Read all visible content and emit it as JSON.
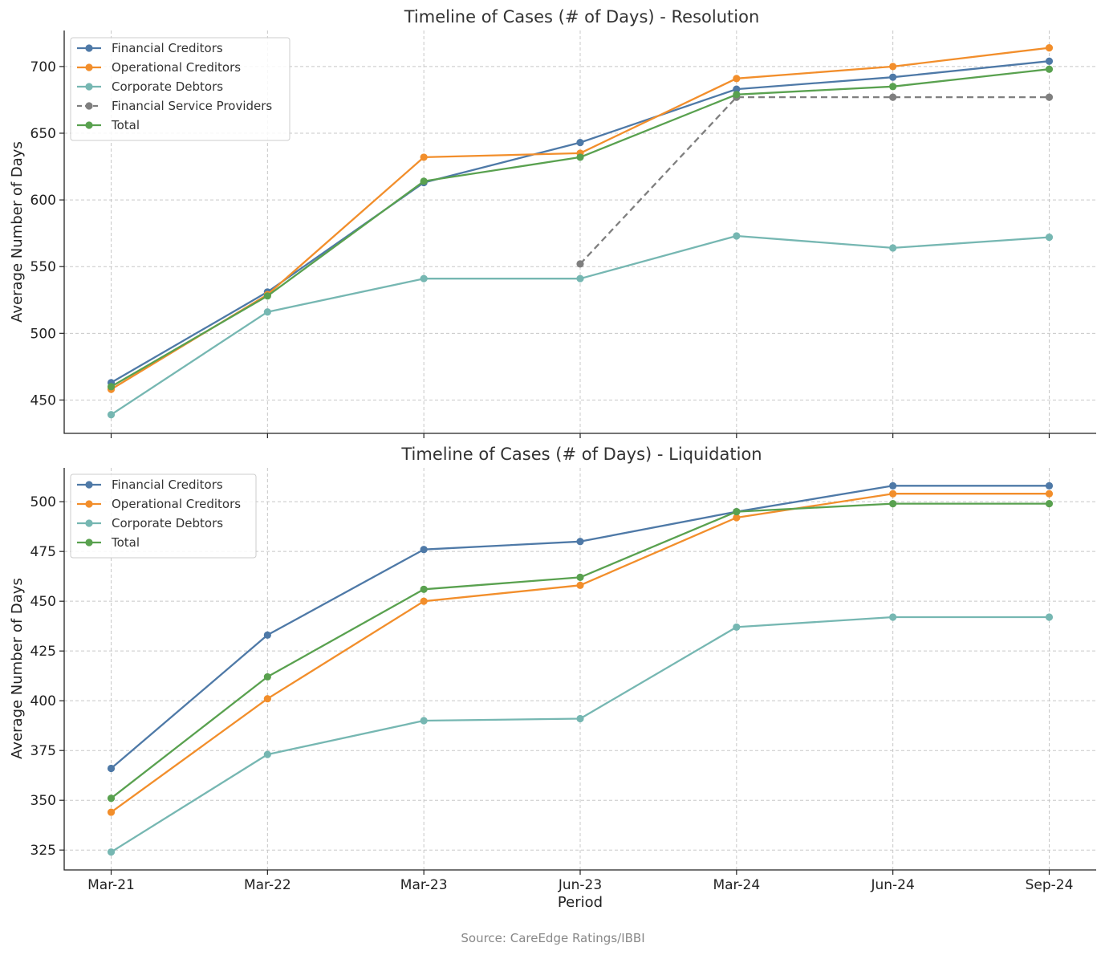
{
  "source_note": "Source: CareEdge Ratings/IBBI",
  "chart_data": [
    {
      "type": "line",
      "title": "Timeline of Cases (# of Days) - Resolution",
      "xlabel": "",
      "ylabel": "Average Number of Days",
      "categories": [
        "Mar-21",
        "Mar-22",
        "Mar-23",
        "Jun-23",
        "Mar-24",
        "Jun-24",
        "Sep-24"
      ],
      "ylim": [
        425,
        727
      ],
      "yticks": [
        450,
        500,
        550,
        600,
        650,
        700
      ],
      "grid": true,
      "legend_position": "upper-left",
      "series": [
        {
          "name": "Financial Creditors",
          "color": "#4e79a7",
          "dashed": false,
          "values": [
            463,
            531,
            613,
            643,
            683,
            692,
            704
          ]
        },
        {
          "name": "Operational Creditors",
          "color": "#f28e2b",
          "dashed": false,
          "values": [
            458,
            529,
            632,
            635,
            691,
            700,
            714
          ]
        },
        {
          "name": "Corporate Debtors",
          "color": "#76b7b2",
          "dashed": false,
          "values": [
            439,
            516,
            541,
            541,
            573,
            564,
            572
          ]
        },
        {
          "name": "Financial Service Providers",
          "color": "#7f7f7f",
          "dashed": true,
          "values": [
            null,
            null,
            null,
            552,
            677,
            677,
            677
          ]
        },
        {
          "name": "Total",
          "color": "#59a14f",
          "dashed": false,
          "values": [
            460,
            528,
            614,
            632,
            679,
            685,
            698
          ]
        }
      ]
    },
    {
      "type": "line",
      "title": "Timeline of Cases (# of Days) - Liquidation",
      "xlabel": "Period",
      "ylabel": "Average Number of Days",
      "categories": [
        "Mar-21",
        "Mar-22",
        "Mar-23",
        "Jun-23",
        "Mar-24",
        "Jun-24",
        "Sep-24"
      ],
      "ylim": [
        315,
        517
      ],
      "yticks": [
        325,
        350,
        375,
        400,
        425,
        450,
        475,
        500
      ],
      "grid": true,
      "legend_position": "upper-left",
      "series": [
        {
          "name": "Financial Creditors",
          "color": "#4e79a7",
          "dashed": false,
          "values": [
            366,
            433,
            476,
            480,
            495,
            508,
            508
          ]
        },
        {
          "name": "Operational Creditors",
          "color": "#f28e2b",
          "dashed": false,
          "values": [
            344,
            401,
            450,
            458,
            492,
            504,
            504
          ]
        },
        {
          "name": "Corporate Debtors",
          "color": "#76b7b2",
          "dashed": false,
          "values": [
            324,
            373,
            390,
            391,
            437,
            442,
            442
          ]
        },
        {
          "name": "Total",
          "color": "#59a14f",
          "dashed": false,
          "values": [
            351,
            412,
            456,
            462,
            495,
            499,
            499
          ]
        }
      ]
    }
  ]
}
